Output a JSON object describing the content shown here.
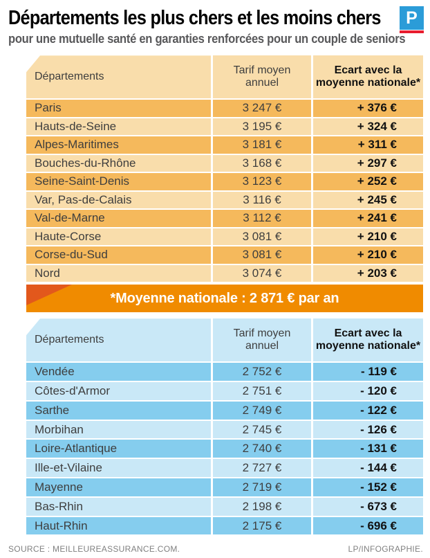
{
  "header": {
    "title": "Départements les plus chers et les moins chers",
    "subtitle": "pour une mutuelle santé en garanties renforcées pour un couple de seniors",
    "logo_letter": "P"
  },
  "columns": {
    "departement": "Départements",
    "tarif": "Tarif moyen annuel",
    "ecart": "Ecart avec la moyenne nationale*"
  },
  "banner": {
    "text": "*Moyenne nationale : 2 871 € par an"
  },
  "chart_data": [
    {
      "type": "table",
      "columns": [
        "Départements",
        "Tarif moyen annuel",
        "Ecart avec la moyenne nationale*"
      ],
      "rows": [
        [
          "Paris",
          "3 247 €",
          "+ 376 €"
        ],
        [
          "Hauts-de-Seine",
          "3 195 €",
          "+ 324 €"
        ],
        [
          "Alpes-Maritimes",
          "3 181 €",
          "+ 311 €"
        ],
        [
          "Bouches-du-Rhône",
          "3 168 €",
          "+ 297 €"
        ],
        [
          "Seine-Saint-Denis",
          "3 123 €",
          "+ 252 €"
        ],
        [
          "Var, Pas-de-Calais",
          "3 116 €",
          "+ 245 €"
        ],
        [
          "Val-de-Marne",
          "3 112 €",
          "+ 241 €"
        ],
        [
          "Haute-Corse",
          "3 081 €",
          "+ 210 €"
        ],
        [
          "Corse-du-Sud",
          "3 081 €",
          "+ 210 €"
        ],
        [
          "Nord",
          "3 074 €",
          "+ 203 €"
        ]
      ]
    },
    {
      "type": "table",
      "columns": [
        "Départements",
        "Tarif moyen annuel",
        "Ecart avec la moyenne nationale*"
      ],
      "rows": [
        [
          "Vendée",
          "2 752 €",
          "- 119 €"
        ],
        [
          "Côtes-d'Armor",
          "2 751 €",
          "- 120 €"
        ],
        [
          "Sarthe",
          "2 749 €",
          "- 122 €"
        ],
        [
          "Morbihan",
          "2 745 €",
          "- 126 €"
        ],
        [
          "Loire-Atlantique",
          "2 740 €",
          "- 131 €"
        ],
        [
          "Ille-et-Vilaine",
          "2 727 €",
          "- 144 €"
        ],
        [
          "Mayenne",
          "2 719 €",
          "- 152 €"
        ],
        [
          "Bas-Rhin",
          "2 198 €",
          "- 673 €"
        ],
        [
          "Haut-Rhin",
          "2 175 €",
          "- 696 €"
        ]
      ]
    }
  ],
  "footer": {
    "source": "SOURCE : MEILLEUREASSURANCE.COM.",
    "credit": "LP/INFOGRAPHIE."
  },
  "colors": {
    "tan_light": "#f9ddab",
    "orange_row": "#f5b95c",
    "banner_orange": "#f08b00",
    "banner_triangle": "#e2581c",
    "blue_light": "#c9e8f7",
    "blue_row": "#85cdee",
    "logo_blue": "#2b9cd8",
    "logo_red": "#e81c2e",
    "text_dark": "#3e3e3e",
    "text_black": "#111111",
    "subtitle_gray": "#58585a",
    "footer_gray": "#808080"
  }
}
